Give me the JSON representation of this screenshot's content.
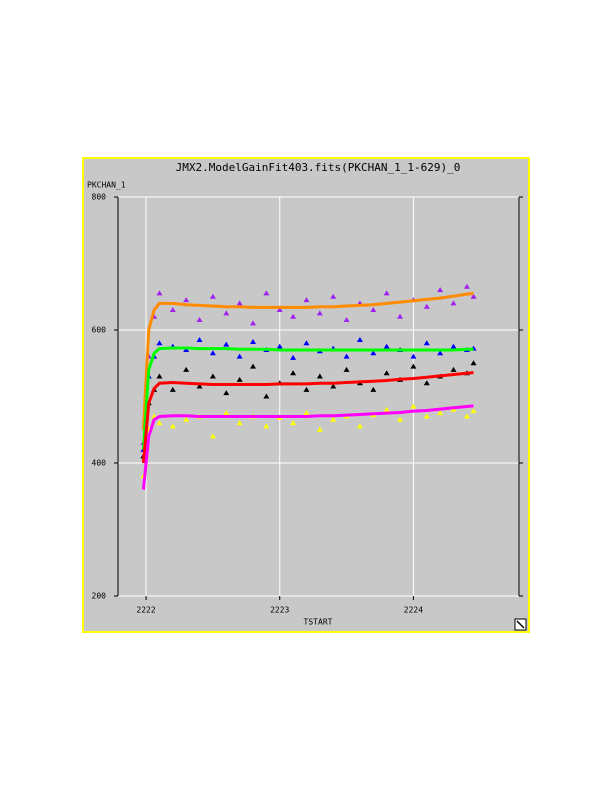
{
  "chart_data": {
    "type": "scatter",
    "title": "JMX2.ModelGainFit403.fits(PKCHAN_1_1-629)_0",
    "y_label": "PKCHAN_1",
    "x_label": "TSTART",
    "xlim": [
      2221.79,
      2224.79
    ],
    "ylim": [
      200,
      800
    ],
    "xticks": [
      2222,
      2223,
      2224
    ],
    "yticks": [
      200,
      400,
      600,
      800
    ],
    "grid": true,
    "x": [
      2221.98,
      2222.02,
      2222.06,
      2222.1,
      2222.2,
      2222.3,
      2222.4,
      2222.5,
      2222.6,
      2222.7,
      2222.8,
      2222.9,
      2223.0,
      2223.1,
      2223.2,
      2223.3,
      2223.4,
      2223.5,
      2223.6,
      2223.7,
      2223.8,
      2223.9,
      2224.0,
      2224.1,
      2224.2,
      2224.3,
      2224.4,
      2224.45
    ],
    "series": [
      {
        "color": "#a020f0",
        "style": "triangle",
        "values": [
          430,
          560,
          620,
          655,
          630,
          645,
          615,
          650,
          625,
          640,
          610,
          655,
          630,
          620,
          645,
          625,
          650,
          615,
          640,
          630,
          655,
          620,
          645,
          635,
          660,
          640,
          665,
          650
        ]
      },
      {
        "color": "#0000ff",
        "style": "triangle",
        "values": [
          420,
          530,
          560,
          580,
          575,
          570,
          585,
          565,
          578,
          560,
          582,
          570,
          575,
          558,
          580,
          568,
          572,
          560,
          585,
          565,
          575,
          570,
          560,
          580,
          565,
          575,
          570,
          572
        ]
      },
      {
        "color": "#000000",
        "style": "triangle",
        "values": [
          410,
          490,
          510,
          530,
          510,
          540,
          515,
          530,
          505,
          525,
          545,
          500,
          520,
          535,
          510,
          530,
          515,
          540,
          520,
          510,
          535,
          525,
          545,
          520,
          530,
          540,
          535,
          550
        ]
      },
      {
        "color": "#ffff00",
        "style": "triangle",
        "values": [
          380,
          450,
          470,
          460,
          455,
          465,
          470,
          440,
          475,
          460,
          470,
          455,
          468,
          460,
          475,
          450,
          465,
          470,
          455,
          472,
          480,
          465,
          485,
          470,
          475,
          480,
          470,
          478
        ]
      },
      {
        "color": "#ff8c00",
        "style": "line",
        "values": [
          450,
          600,
          630,
          640,
          640,
          638,
          637,
          636,
          635,
          635,
          634,
          634,
          634,
          634,
          634,
          635,
          635,
          636,
          637,
          638,
          640,
          642,
          644,
          646,
          648,
          651,
          654,
          655
        ]
      },
      {
        "color": "#00ff00",
        "style": "line",
        "values": [
          420,
          540,
          565,
          572,
          573,
          573,
          572,
          572,
          572,
          571,
          571,
          571,
          570,
          570,
          570,
          570,
          570,
          570,
          570,
          570,
          570,
          570,
          570,
          570,
          570,
          570,
          571,
          571
        ]
      },
      {
        "color": "#ff0000",
        "style": "line",
        "values": [
          400,
          490,
          512,
          520,
          521,
          520,
          519,
          518,
          518,
          518,
          518,
          518,
          519,
          519,
          519,
          520,
          520,
          521,
          522,
          523,
          524,
          526,
          527,
          529,
          531,
          533,
          535,
          536
        ]
      },
      {
        "color": "#ff00ff",
        "style": "line",
        "values": [
          360,
          440,
          465,
          470,
          471,
          471,
          470,
          470,
          470,
          470,
          470,
          470,
          470,
          470,
          470,
          471,
          471,
          472,
          473,
          474,
          475,
          476,
          478,
          479,
          481,
          483,
          485,
          486
        ]
      }
    ]
  }
}
